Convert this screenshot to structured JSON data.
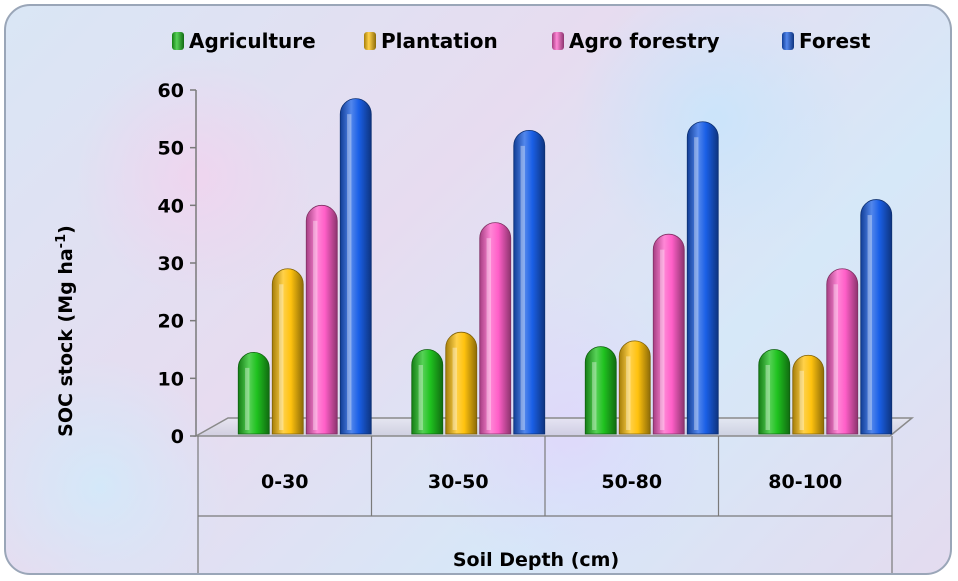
{
  "chart_data": {
    "type": "bar",
    "title": "",
    "categories": [
      "0-30",
      "30-50",
      "50-80",
      "80-100"
    ],
    "series": [
      {
        "name": "Agriculture",
        "color": "#1fc21f",
        "values": [
          14.5,
          15,
          15.5,
          15
        ]
      },
      {
        "name": "Plantation",
        "color": "#ffc20e",
        "values": [
          29,
          18,
          16.5,
          14
        ]
      },
      {
        "name": "Agro forestry",
        "color": "#ff5fc8",
        "values": [
          40,
          37,
          35,
          29
        ]
      },
      {
        "name": "Forest",
        "color": "#1a5fe6",
        "values": [
          58.5,
          53,
          54.5,
          41
        ]
      }
    ],
    "xlabel": "Soil Depth (cm)",
    "ylabel": "SOC stock (Mg ha",
    "ylabel_superscript": "-1",
    "ylabel_close": ")",
    "ylim": [
      0,
      60
    ],
    "yticks": [
      "0",
      "10",
      "20",
      "30",
      "40",
      "50",
      "60"
    ],
    "legend_position": "top",
    "grid": false
  }
}
